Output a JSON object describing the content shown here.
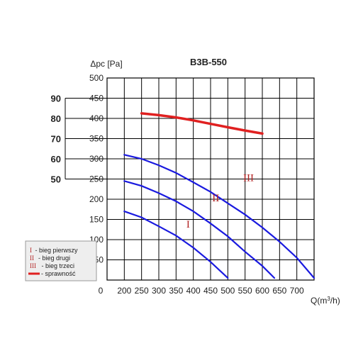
{
  "chart_data": {
    "type": "line",
    "title": "B3B-550",
    "ylabel": "Δpc [Pa]",
    "xlabel": "Q(m³/h)",
    "xlabel_main": "Q(m",
    "xlabel_sup": "3",
    "xlabel_tail": "/h)",
    "x_origin_label": "0",
    "xlim": [
      150,
      750
    ],
    "ylim": [
      0,
      500
    ],
    "x_ticks": [
      200,
      250,
      300,
      350,
      400,
      450,
      500,
      550,
      600,
      650,
      700
    ],
    "y_ticks": [
      50,
      100,
      150,
      200,
      250,
      300,
      350,
      400,
      450,
      500
    ],
    "grid": true,
    "secondary_y": {
      "label": "sprawność",
      "ticks": [
        50,
        60,
        70,
        80,
        90
      ],
      "range": [
        50,
        90
      ]
    },
    "series": [
      {
        "name": "bieg pierwszy",
        "marker": "I",
        "color": "#1a1adf",
        "points": [
          [
            200,
            170
          ],
          [
            250,
            155
          ],
          [
            300,
            133
          ],
          [
            350,
            110
          ],
          [
            400,
            80
          ],
          [
            450,
            45
          ],
          [
            500,
            5
          ]
        ]
      },
      {
        "name": "bieg drugi",
        "marker": "II",
        "color": "#1a1adf",
        "points": [
          [
            200,
            245
          ],
          [
            250,
            233
          ],
          [
            300,
            215
          ],
          [
            350,
            195
          ],
          [
            400,
            170
          ],
          [
            450,
            140
          ],
          [
            500,
            108
          ],
          [
            550,
            70
          ],
          [
            600,
            35
          ],
          [
            635,
            5
          ]
        ]
      },
      {
        "name": "bieg trzeci",
        "marker": "III",
        "color": "#1a1adf",
        "points": [
          [
            200,
            310
          ],
          [
            250,
            300
          ],
          [
            300,
            284
          ],
          [
            350,
            265
          ],
          [
            400,
            242
          ],
          [
            450,
            218
          ],
          [
            500,
            190
          ],
          [
            550,
            162
          ],
          [
            600,
            130
          ],
          [
            650,
            95
          ],
          [
            700,
            55
          ],
          [
            750,
            5
          ]
        ]
      },
      {
        "name": "sprawność",
        "color": "#e02020",
        "axis": "secondary",
        "points": [
          [
            250,
            82.5
          ],
          [
            300,
            81.6
          ],
          [
            350,
            80.5
          ],
          [
            400,
            79.0
          ],
          [
            450,
            77.3
          ],
          [
            500,
            75.6
          ],
          [
            550,
            74.0
          ],
          [
            600,
            72.5
          ]
        ]
      }
    ],
    "annotations": [
      {
        "text": "I",
        "x": 385,
        "y": 130
      },
      {
        "text": "II",
        "x": 465,
        "y": 195
      },
      {
        "text": "III",
        "x": 560,
        "y": 245
      }
    ],
    "legend": {
      "placement": "left",
      "items": [
        {
          "marker": "I",
          "label": "- bieg pierwszy"
        },
        {
          "marker": "II",
          "label": "- bieg drugi"
        },
        {
          "marker": "III",
          "label": "- bieg trzeci"
        },
        {
          "marker": "",
          "label": "- sprawność"
        }
      ]
    }
  }
}
